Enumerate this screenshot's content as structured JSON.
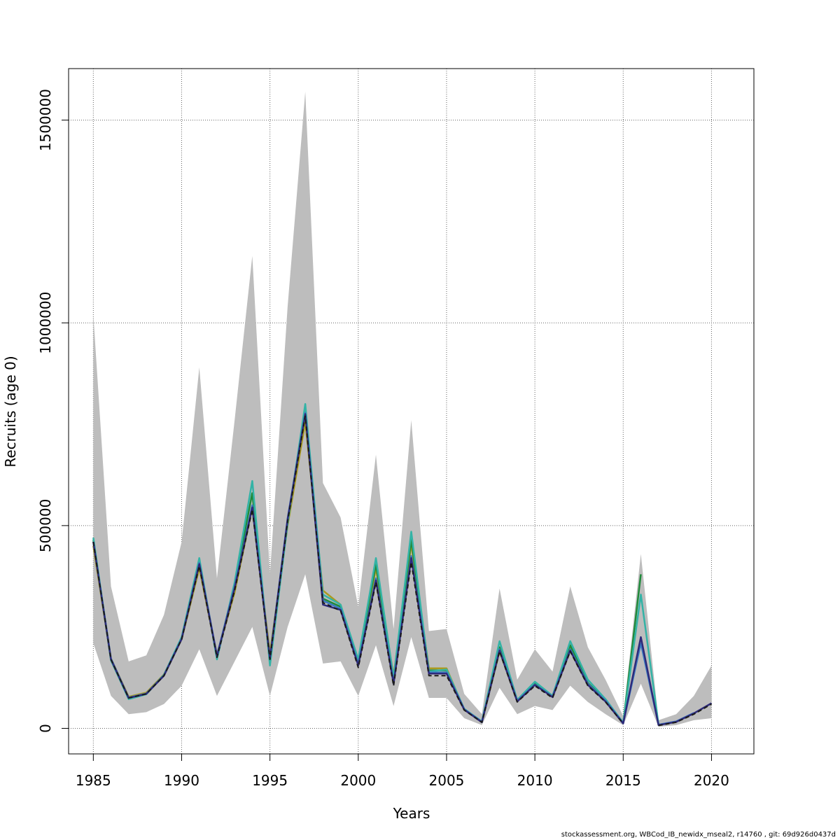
{
  "chart_data": {
    "type": "line",
    "xlabel": "Years",
    "ylabel": "Recruits (age 0)",
    "xlim": [
      1983.6,
      2022.4
    ],
    "ylim": [
      -63000,
      1627000
    ],
    "x_ticks": [
      "1985",
      "1990",
      "1995",
      "2000",
      "2005",
      "2010",
      "2015",
      "2020"
    ],
    "y_ticks": [
      "0",
      "500000",
      "1000000",
      "1500000"
    ],
    "grid": true,
    "x": [
      1985,
      1986,
      1987,
      1988,
      1989,
      1990,
      1991,
      1992,
      1993,
      1994,
      1995,
      1996,
      1997,
      1998,
      1999,
      2000,
      2001,
      2002,
      2003,
      2004,
      2005,
      2006,
      2007,
      2008,
      2009,
      2010,
      2011,
      2012,
      2013,
      2014,
      2015,
      2016,
      2017,
      2018,
      2019,
      2020
    ],
    "band": {
      "upper": [
        1020000,
        350000,
        165000,
        180000,
        280000,
        460000,
        890000,
        370000,
        760000,
        1165000,
        380000,
        1040000,
        1570000,
        605000,
        520000,
        300000,
        675000,
        245000,
        760000,
        240000,
        245000,
        85000,
        35000,
        345000,
        120000,
        195000,
        140000,
        350000,
        200000,
        120000,
        30000,
        430000,
        20000,
        35000,
        80000,
        155000
      ],
      "lower": [
        210000,
        80000,
        35000,
        40000,
        60000,
        105000,
        195000,
        80000,
        165000,
        250000,
        80000,
        250000,
        380000,
        160000,
        165000,
        80000,
        205000,
        55000,
        225000,
        75000,
        75000,
        25000,
        8000,
        100000,
        35000,
        55000,
        45000,
        105000,
        65000,
        35000,
        8000,
        110000,
        4000,
        8000,
        20000,
        25000
      ]
    },
    "series": [
      {
        "color": "#1a1a1a",
        "dashed": true,
        "values": [
          460000,
          170000,
          75000,
          85000,
          130000,
          220000,
          400000,
          175000,
          340000,
          540000,
          170000,
          510000,
          770000,
          310000,
          290000,
          150000,
          360000,
          105000,
          410000,
          130000,
          130000,
          45000,
          15000,
          190000,
          65000,
          105000,
          75000,
          190000,
          105000,
          65000,
          12000,
          null,
          7000,
          15000,
          35000,
          60000
        ]
      },
      {
        "color": "#2d2a7a",
        "dashed": false,
        "values": [
          460000,
          170000,
          75000,
          85000,
          130000,
          220000,
          405000,
          178000,
          345000,
          545000,
          172000,
          515000,
          775000,
          305000,
          292000,
          155000,
          365000,
          110000,
          420000,
          135000,
          135000,
          46000,
          15000,
          192000,
          66000,
          107000,
          77000,
          192000,
          107000,
          66000,
          12000,
          225000,
          8000,
          16000,
          37000,
          62000
        ]
      },
      {
        "color": "#3a78c2",
        "dashed": false,
        "values": [
          460000,
          172000,
          76000,
          86000,
          131000,
          221000,
          408000,
          180000,
          350000,
          550000,
          174000,
          518000,
          778000,
          315000,
          295000,
          158000,
          370000,
          112000,
          425000,
          138000,
          138000,
          47000,
          16000,
          195000,
          68000,
          108000,
          78000,
          195000,
          110000,
          68000,
          13000,
          210000,
          9000,
          17000,
          38000,
          null
        ]
      },
      {
        "color": "#33b3a6",
        "dashed": false,
        "values": [
          470000,
          168000,
          72000,
          84000,
          132000,
          225000,
          420000,
          170000,
          360000,
          610000,
          155000,
          505000,
          800000,
          330000,
          305000,
          170000,
          420000,
          125000,
          485000,
          140000,
          145000,
          48000,
          17000,
          215000,
          70000,
          115000,
          80000,
          215000,
          120000,
          72000,
          14000,
          330000,
          10000,
          null,
          null,
          null
        ]
      },
      {
        "color": "#1f8a3a",
        "dashed": false,
        "values": [
          465000,
          168000,
          74000,
          85000,
          132000,
          222000,
          412000,
          176000,
          355000,
          580000,
          160000,
          510000,
          790000,
          320000,
          300000,
          165000,
          405000,
          120000,
          465000,
          143000,
          143000,
          47000,
          16000,
          200000,
          70000,
          113000,
          80000,
          205000,
          112000,
          70000,
          13000,
          380000,
          null,
          null,
          null,
          null
        ]
      },
      {
        "color": "#aa9a1f",
        "dashed": false,
        "values": [
          450000,
          172000,
          78000,
          88000,
          133000,
          220000,
          395000,
          182000,
          335000,
          545000,
          185000,
          500000,
          755000,
          340000,
          305000,
          160000,
          395000,
          130000,
          455000,
          148000,
          148000,
          46000,
          16000,
          190000,
          70000,
          112000,
          78000,
          200000,
          110000,
          68000,
          14000,
          null,
          null,
          null,
          null,
          null
        ]
      }
    ]
  },
  "footer_text": "stockassessment.org, WBCod_IB_newidx_mseal2, r14760 , git: 69d926d0437d"
}
